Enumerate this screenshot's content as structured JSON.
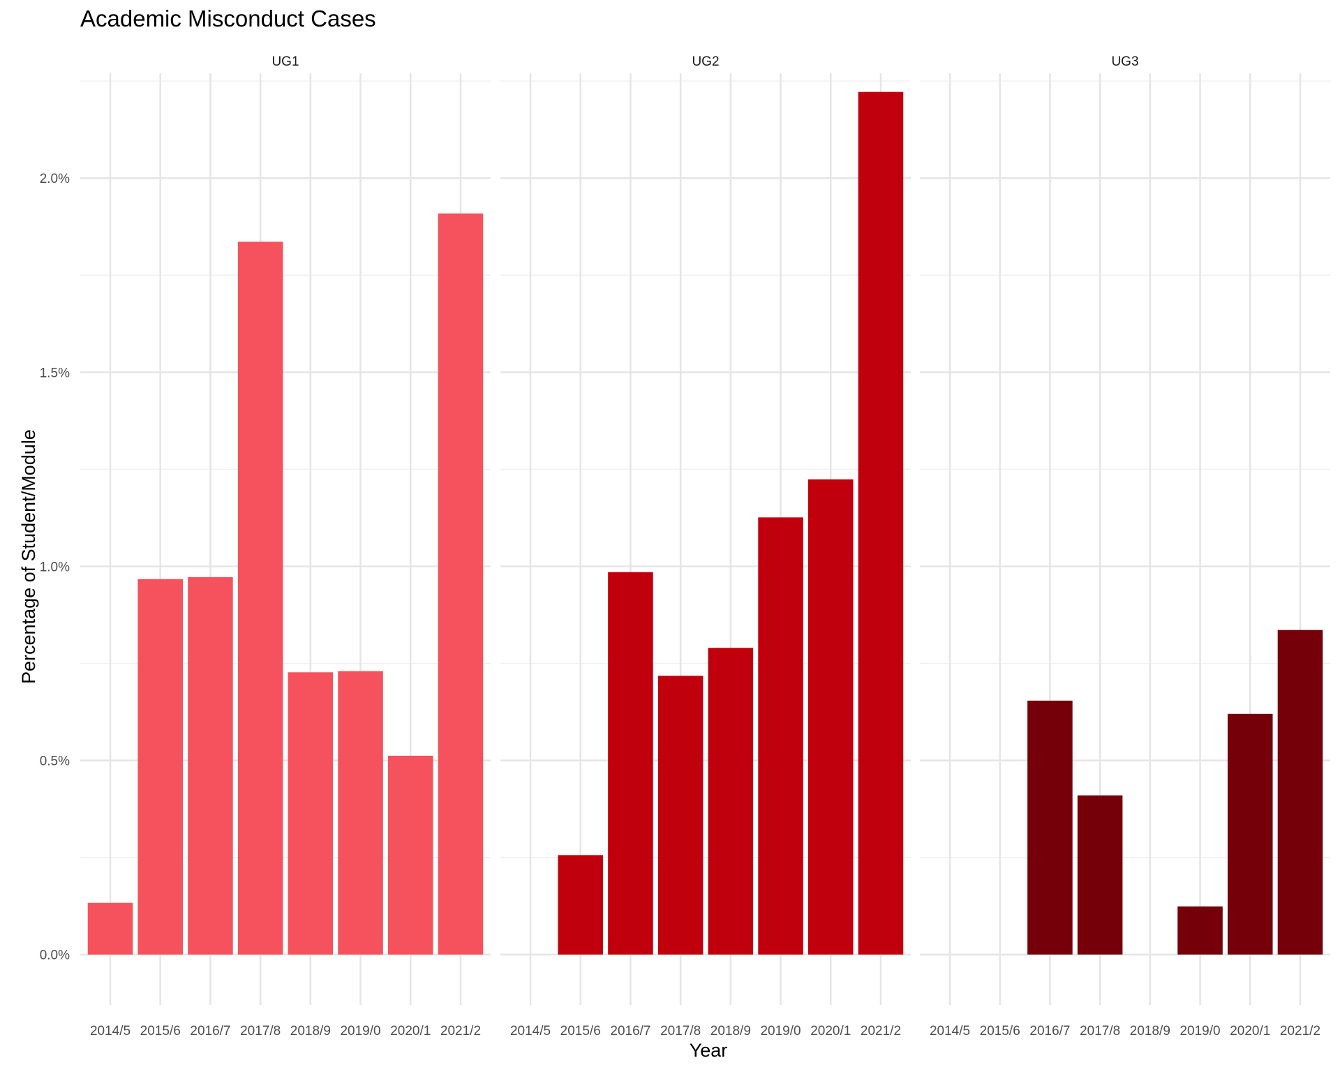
{
  "chart_data": {
    "type": "bar",
    "title": "Academic Misconduct Cases",
    "xlabel": "Year",
    "ylabel": "Percentage of Student/Module",
    "categories": [
      "2014/5",
      "2015/6",
      "2016/7",
      "2017/8",
      "2018/9",
      "2019/0",
      "2020/1",
      "2021/2"
    ],
    "ylim": [
      -0.0013,
      0.0227
    ],
    "yticks": [
      0,
      0.005,
      0.01,
      0.015,
      0.02
    ],
    "ytick_labels": [
      "0.0%",
      "0.5%",
      "1.0%",
      "1.5%",
      "2.0%"
    ],
    "grid": true,
    "legend": "none",
    "facets": [
      {
        "name": "UG1",
        "color": "#F5525D",
        "values": [
          0.00133,
          0.00967,
          0.00972,
          0.01836,
          0.00727,
          0.0073,
          0.00512,
          0.01909
        ]
      },
      {
        "name": "UG2",
        "color": "#C1000D",
        "values": [
          0,
          0.00256,
          0.00985,
          0.00718,
          0.0079,
          0.01126,
          0.01224,
          0.02222
        ]
      },
      {
        "name": "UG3",
        "color": "#750009",
        "values": [
          0,
          0,
          0.00654,
          0.0041,
          0,
          0.00124,
          0.0062,
          0.00836
        ]
      }
    ]
  }
}
